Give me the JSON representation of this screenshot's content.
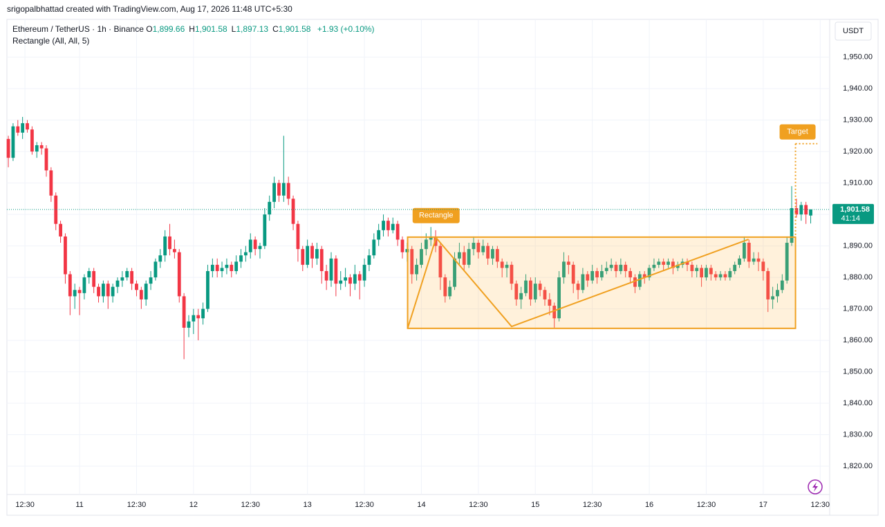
{
  "header": "srigopalbhattad created with TradingView.com, Aug 17, 2026 11:48 UTC+5:30",
  "legend": {
    "symbol": "Ethereum / TetherUS · 1h · Binance",
    "ohlc": [
      {
        "key": "O",
        "value": "1,899.66"
      },
      {
        "key": "H",
        "value": "1,901.58"
      },
      {
        "key": "L",
        "value": "1,897.13"
      },
      {
        "key": "C",
        "value": "1,901.58"
      }
    ],
    "change": "+1.93 (+0.10%)",
    "indicator": "Rectangle (All, All, 5)"
  },
  "currency": "USDT",
  "chart_data": {
    "type": "candlestick",
    "up_color": "#089981",
    "down_color": "#f23645",
    "xlim": [
      -0.3,
      173
    ],
    "ylim": [
      1811,
      1962
    ],
    "yticks": [
      {
        "value": 1820,
        "label": "1,820.00"
      },
      {
        "value": 1830,
        "label": "1,830.00"
      },
      {
        "value": 1840,
        "label": "1,840.00"
      },
      {
        "value": 1850,
        "label": "1,850.00"
      },
      {
        "value": 1860,
        "label": "1,860.00"
      },
      {
        "value": 1870,
        "label": "1,870.00"
      },
      {
        "value": 1880,
        "label": "1,880.00"
      },
      {
        "value": 1890,
        "label": "1,890.00"
      },
      {
        "value": 1900,
        "label": "1,900.00"
      },
      {
        "value": 1910,
        "label": "1,910.00"
      },
      {
        "value": 1920,
        "label": "1,920.00"
      },
      {
        "value": 1930,
        "label": "1,930.00"
      },
      {
        "value": 1940,
        "label": "1,940.00"
      },
      {
        "value": 1950,
        "label": "1,950.00"
      }
    ],
    "xticks": [
      {
        "value": 3.5,
        "label": "12:30"
      },
      {
        "value": 15,
        "label": "11"
      },
      {
        "value": 27,
        "label": "12:30"
      },
      {
        "value": 39,
        "label": "12"
      },
      {
        "value": 51,
        "label": "12:30"
      },
      {
        "value": 63,
        "label": "13"
      },
      {
        "value": 75,
        "label": "12:30"
      },
      {
        "value": 87,
        "label": "14"
      },
      {
        "value": 99,
        "label": "12:30"
      },
      {
        "value": 111,
        "label": "15"
      },
      {
        "value": 123,
        "label": "12:30"
      },
      {
        "value": 135,
        "label": "16"
      },
      {
        "value": 147,
        "label": "12:30"
      },
      {
        "value": 159,
        "label": "17"
      },
      {
        "value": 171,
        "label": "12:30"
      }
    ],
    "grid": true,
    "candles": [
      [
        1924,
        1925,
        1915,
        1918
      ],
      [
        1918,
        1929,
        1917,
        1928
      ],
      [
        1928,
        1930,
        1925,
        1926
      ],
      [
        1926,
        1931,
        1924,
        1929
      ],
      [
        1929,
        1930,
        1926,
        1927
      ],
      [
        1927,
        1928,
        1919,
        1920
      ],
      [
        1920,
        1923,
        1918,
        1922
      ],
      [
        1922,
        1923,
        1919,
        1921
      ],
      [
        1921,
        1922,
        1912,
        1914
      ],
      [
        1914,
        1915,
        1904,
        1906
      ],
      [
        1906,
        1907,
        1895,
        1897
      ],
      [
        1897,
        1898,
        1891,
        1893
      ],
      [
        1893,
        1894,
        1878,
        1881
      ],
      [
        1881,
        1882,
        1868,
        1874
      ],
      [
        1874,
        1878,
        1870,
        1876
      ],
      [
        1876,
        1877,
        1868,
        1875
      ],
      [
        1875,
        1881,
        1873,
        1880
      ],
      [
        1880,
        1883,
        1878,
        1882
      ],
      [
        1882,
        1883,
        1875,
        1877
      ],
      [
        1877,
        1878,
        1872,
        1874
      ],
      [
        1874,
        1879,
        1872,
        1878
      ],
      [
        1878,
        1879,
        1870,
        1874
      ],
      [
        1874,
        1878,
        1872,
        1877
      ],
      [
        1877,
        1880,
        1875,
        1879
      ],
      [
        1879,
        1882,
        1877,
        1880
      ],
      [
        1880,
        1883,
        1879,
        1882
      ],
      [
        1882,
        1883,
        1876,
        1878
      ],
      [
        1878,
        1879,
        1874,
        1876
      ],
      [
        1876,
        1877,
        1870,
        1873
      ],
      [
        1873,
        1879,
        1871,
        1878
      ],
      [
        1878,
        1882,
        1876,
        1880
      ],
      [
        1880,
        1886,
        1879,
        1885
      ],
      [
        1885,
        1889,
        1883,
        1887
      ],
      [
        1887,
        1895,
        1885,
        1893
      ],
      [
        1893,
        1897,
        1887,
        1889
      ],
      [
        1889,
        1892,
        1886,
        1888
      ],
      [
        1888,
        1889,
        1872,
        1874
      ],
      [
        1874,
        1875,
        1854,
        1864
      ],
      [
        1864,
        1868,
        1861,
        1866
      ],
      [
        1866,
        1870,
        1862,
        1868
      ],
      [
        1868,
        1870,
        1860,
        1867
      ],
      [
        1867,
        1872,
        1865,
        1870
      ],
      [
        1870,
        1884,
        1869,
        1882
      ],
      [
        1882,
        1886,
        1880,
        1884
      ],
      [
        1884,
        1886,
        1880,
        1882
      ],
      [
        1882,
        1885,
        1880,
        1883
      ],
      [
        1883,
        1886,
        1881,
        1884
      ],
      [
        1884,
        1885,
        1880,
        1882
      ],
      [
        1882,
        1887,
        1881,
        1885
      ],
      [
        1885,
        1889,
        1883,
        1887
      ],
      [
        1887,
        1890,
        1885,
        1888
      ],
      [
        1888,
        1894,
        1886,
        1892
      ],
      [
        1892,
        1893,
        1887,
        1889
      ],
      [
        1889,
        1891,
        1886,
        1890
      ],
      [
        1890,
        1902,
        1889,
        1900
      ],
      [
        1900,
        1906,
        1898,
        1904
      ],
      [
        1904,
        1912,
        1902,
        1910
      ],
      [
        1910,
        1911,
        1904,
        1906
      ],
      [
        1906,
        1925,
        1904,
        1910
      ],
      [
        1910,
        1912,
        1903,
        1905
      ],
      [
        1905,
        1906,
        1895,
        1897
      ],
      [
        1897,
        1898,
        1885,
        1889
      ],
      [
        1889,
        1890,
        1882,
        1884
      ],
      [
        1884,
        1892,
        1883,
        1890
      ],
      [
        1890,
        1891,
        1883,
        1886
      ],
      [
        1886,
        1891,
        1884,
        1889
      ],
      [
        1889,
        1890,
        1878,
        1882
      ],
      [
        1882,
        1884,
        1876,
        1879
      ],
      [
        1879,
        1888,
        1877,
        1886
      ],
      [
        1886,
        1887,
        1874,
        1878
      ],
      [
        1878,
        1882,
        1876,
        1879
      ],
      [
        1879,
        1883,
        1877,
        1880
      ],
      [
        1880,
        1881,
        1874,
        1878
      ],
      [
        1878,
        1884,
        1876,
        1881
      ],
      [
        1881,
        1882,
        1873,
        1879
      ],
      [
        1879,
        1886,
        1877,
        1884
      ],
      [
        1884,
        1889,
        1882,
        1887
      ],
      [
        1887,
        1894,
        1886,
        1892
      ],
      [
        1892,
        1897,
        1890,
        1895
      ],
      [
        1895,
        1900,
        1893,
        1898
      ],
      [
        1898,
        1899,
        1893,
        1895
      ],
      [
        1895,
        1899,
        1894,
        1897
      ],
      [
        1897,
        1898,
        1890,
        1892
      ],
      [
        1892,
        1893,
        1886,
        1888
      ],
      [
        1888,
        1891,
        1885,
        1889
      ],
      [
        1889,
        1890,
        1878,
        1881
      ],
      [
        1881,
        1886,
        1879,
        1884
      ],
      [
        1884,
        1891,
        1883,
        1889
      ],
      [
        1889,
        1894,
        1887,
        1892
      ],
      [
        1892,
        1896,
        1890,
        1893
      ],
      [
        1893,
        1895,
        1888,
        1890
      ],
      [
        1890,
        1891,
        1876,
        1880
      ],
      [
        1880,
        1881,
        1872,
        1874
      ],
      [
        1874,
        1879,
        1873,
        1877
      ],
      [
        1877,
        1888,
        1876,
        1886
      ],
      [
        1886,
        1891,
        1884,
        1888
      ],
      [
        1888,
        1890,
        1882,
        1884
      ],
      [
        1884,
        1891,
        1883,
        1889
      ],
      [
        1889,
        1893,
        1887,
        1891
      ],
      [
        1891,
        1892,
        1886,
        1888
      ],
      [
        1888,
        1892,
        1887,
        1890
      ],
      [
        1890,
        1891,
        1884,
        1886
      ],
      [
        1886,
        1890,
        1884,
        1889
      ],
      [
        1889,
        1890,
        1883,
        1885
      ],
      [
        1885,
        1886,
        1880,
        1883
      ],
      [
        1883,
        1885,
        1880,
        1884
      ],
      [
        1884,
        1885,
        1876,
        1878
      ],
      [
        1878,
        1879,
        1871,
        1873
      ],
      [
        1873,
        1877,
        1870,
        1875
      ],
      [
        1875,
        1881,
        1874,
        1879
      ],
      [
        1879,
        1880,
        1871,
        1873
      ],
      [
        1873,
        1880,
        1872,
        1878
      ],
      [
        1878,
        1879,
        1874,
        1876
      ],
      [
        1876,
        1877,
        1871,
        1873
      ],
      [
        1873,
        1875,
        1868,
        1871
      ],
      [
        1871,
        1872,
        1864,
        1867
      ],
      [
        1867,
        1882,
        1866,
        1880
      ],
      [
        1880,
        1888,
        1878,
        1885
      ],
      [
        1885,
        1887,
        1881,
        1884
      ],
      [
        1884,
        1885,
        1875,
        1878
      ],
      [
        1878,
        1879,
        1873,
        1876
      ],
      [
        1876,
        1883,
        1875,
        1881
      ],
      [
        1881,
        1882,
        1877,
        1879
      ],
      [
        1879,
        1884,
        1878,
        1882
      ],
      [
        1882,
        1883,
        1878,
        1880
      ],
      [
        1880,
        1884,
        1879,
        1882
      ],
      [
        1882,
        1885,
        1881,
        1883
      ],
      [
        1883,
        1886,
        1882,
        1884
      ],
      [
        1884,
        1885,
        1880,
        1882
      ],
      [
        1882,
        1886,
        1881,
        1884
      ],
      [
        1884,
        1885,
        1880,
        1882
      ],
      [
        1882,
        1883,
        1878,
        1880
      ],
      [
        1880,
        1881,
        1875,
        1877
      ],
      [
        1877,
        1882,
        1876,
        1881
      ],
      [
        1881,
        1882,
        1878,
        1880
      ],
      [
        1880,
        1884,
        1879,
        1883
      ],
      [
        1883,
        1886,
        1882,
        1884
      ],
      [
        1884,
        1886,
        1883,
        1885
      ],
      [
        1885,
        1886,
        1882,
        1884
      ],
      [
        1884,
        1886,
        1883,
        1885
      ],
      [
        1885,
        1886,
        1881,
        1883
      ],
      [
        1883,
        1885,
        1882,
        1884
      ],
      [
        1884,
        1886,
        1883,
        1885
      ],
      [
        1885,
        1886,
        1882,
        1884
      ],
      [
        1884,
        1885,
        1880,
        1882
      ],
      [
        1882,
        1884,
        1880,
        1883
      ],
      [
        1883,
        1884,
        1877,
        1880
      ],
      [
        1880,
        1884,
        1879,
        1883
      ],
      [
        1883,
        1884,
        1879,
        1881
      ],
      [
        1881,
        1882,
        1879,
        1880
      ],
      [
        1880,
        1882,
        1879,
        1881
      ],
      [
        1881,
        1882,
        1879,
        1880
      ],
      [
        1880,
        1883,
        1879,
        1882
      ],
      [
        1882,
        1885,
        1881,
        1884
      ],
      [
        1884,
        1887,
        1883,
        1886
      ],
      [
        1886,
        1893,
        1885,
        1891
      ],
      [
        1891,
        1892,
        1883,
        1885
      ],
      [
        1885,
        1888,
        1884,
        1886
      ],
      [
        1886,
        1888,
        1882,
        1885
      ],
      [
        1885,
        1886,
        1879,
        1882
      ],
      [
        1882,
        1883,
        1869,
        1873
      ],
      [
        1873,
        1877,
        1870,
        1874
      ],
      [
        1874,
        1878,
        1872,
        1876
      ],
      [
        1876,
        1881,
        1875,
        1879
      ],
      [
        1879,
        1893,
        1878,
        1891
      ],
      [
        1891,
        1909,
        1890,
        1902
      ],
      [
        1902,
        1905,
        1899,
        1900
      ],
      [
        1900,
        1904,
        1898,
        1903
      ],
      [
        1903,
        1904,
        1897,
        1900
      ],
      [
        1899.66,
        1901.58,
        1897.13,
        1901.58
      ]
    ],
    "last_price": 1901.58,
    "last_price_label": "1,901.58",
    "countdown": "41:14",
    "drawing_color": "#f0a020",
    "rectangle": {
      "x": [
        84.1,
        165.8
      ],
      "y": [
        1863.8,
        1892.8
      ]
    },
    "pattern": {
      "x": [
        84.1,
        90.1,
        106,
        155.9
      ],
      "y": [
        1863.8,
        1892.6,
        1864.4,
        1892.1
      ]
    },
    "pattern_label": "Rectangle",
    "target": {
      "x": [
        165.8,
        170.4
      ],
      "y": 1922.5
    },
    "target_label": "Target"
  }
}
